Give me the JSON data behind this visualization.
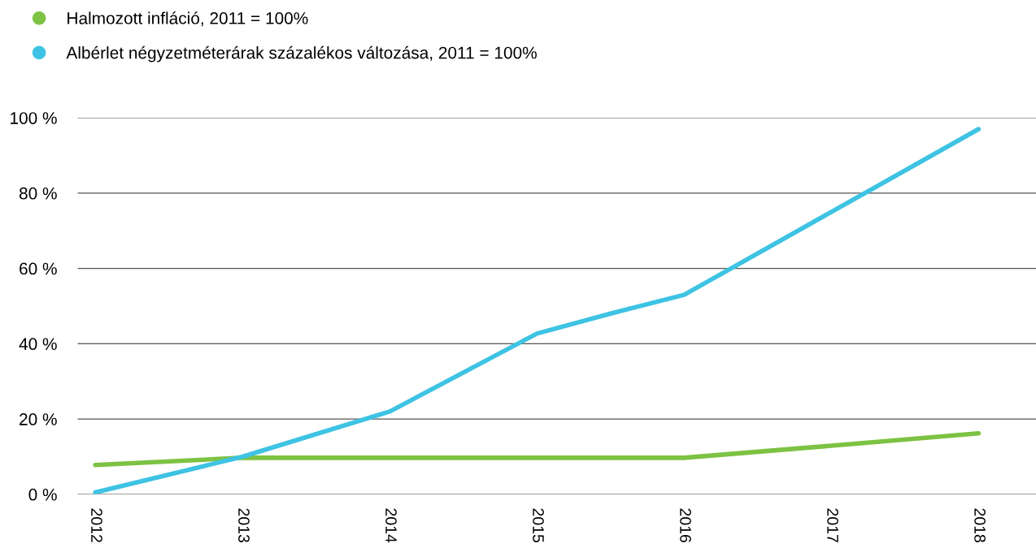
{
  "chart_data": {
    "type": "line",
    "series": [
      {
        "name": "Halmozott infláció, 2011 = 100%",
        "color": "#7dc243",
        "x": [
          2012,
          2013,
          2014,
          2015,
          2016,
          2017,
          2018
        ],
        "values": [
          7.8,
          9.7,
          9.7,
          9.7,
          9.7,
          12.9,
          16.2
        ]
      },
      {
        "name": "Albérlet négyzetméterárak százalékos változása, 2011 = 100%",
        "color": "#3ec3e3",
        "x": [
          2012,
          2013,
          2014,
          2015,
          2015.5,
          2016,
          2018
        ],
        "values": [
          0.5,
          10,
          22,
          42.7,
          48,
          53,
          97
        ]
      }
    ],
    "xlim": [
      2011.88,
      2018.39
    ],
    "xticks": [
      2012,
      2013,
      2014,
      2015,
      2016,
      2017,
      2018
    ],
    "ylim": [
      0,
      100
    ],
    "yticks": [
      {
        "value": 0,
        "label": "0 %"
      },
      {
        "value": 20,
        "label": "20 %"
      },
      {
        "value": 40,
        "label": "40 %"
      },
      {
        "value": 60,
        "label": "60 %"
      },
      {
        "value": 80,
        "label": "80 %"
      },
      {
        "value": 100,
        "label": "100 %"
      }
    ],
    "grid": "y",
    "legend": "top left",
    "marker": "none",
    "line_style": "solid"
  }
}
